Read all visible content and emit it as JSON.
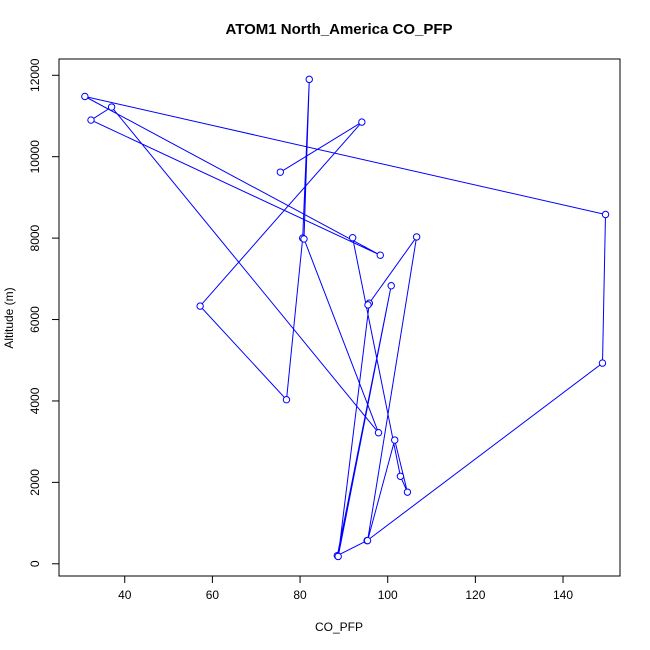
{
  "chart_data": {
    "type": "line",
    "title": "ATOM1 North_America CO_PFP",
    "xlabel": "CO_PFP",
    "ylabel": "Altitude (m)",
    "xlim": [
      25,
      153
    ],
    "ylim": [
      -300,
      12400
    ],
    "xticks": [
      40,
      60,
      80,
      100,
      120,
      140
    ],
    "yticks": [
      0,
      2000,
      4000,
      6000,
      8000,
      10000,
      12000
    ],
    "grid": false,
    "legend": "none",
    "line_color": "#0000ff",
    "marker": "open-circle",
    "series": [
      {
        "x": [
          75.5,
          94.1,
          57.2,
          76.9,
          80.6,
          82.1,
          80.9,
          97.9,
          37.0,
          32.3,
          98.3,
          30.9,
          149.7,
          149.0,
          95.3,
          88.5,
          100.8,
          88.7,
          95.8,
          95.5,
          106.6,
          95.4,
          101.6,
          104.5,
          102.9,
          92.0
        ],
        "y": [
          9620,
          10850,
          6330,
          4030,
          8000,
          11900,
          7980,
          3220,
          11220,
          10900,
          7580,
          11480,
          8580,
          4930,
          570,
          200,
          6830,
          180,
          6400,
          6360,
          8030,
          570,
          3040,
          1760,
          2150,
          8010
        ]
      }
    ]
  }
}
